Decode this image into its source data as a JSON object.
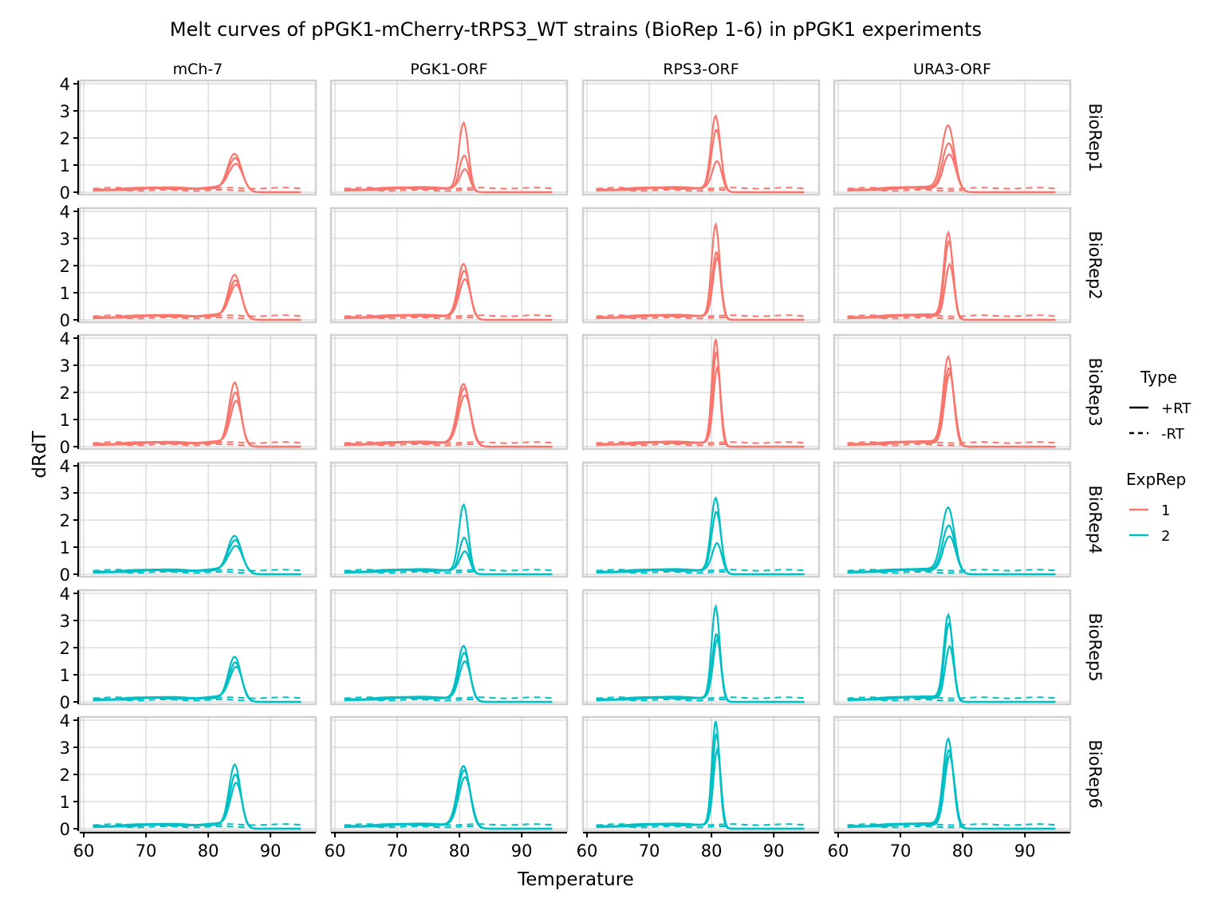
{
  "chart_data": {
    "type": "line",
    "title": "Melt curves of pPGK1-mCherry-tRPS3_WT strains (BioRep 1-6) in pPGK1 experiments",
    "xlabel": "Temperature",
    "ylabel": "dRdT",
    "xlim": [
      60,
      96
    ],
    "ylim": [
      0,
      4
    ],
    "x_ticks": [
      "60",
      "70",
      "80",
      "90"
    ],
    "y_ticks": [
      "0",
      "1",
      "2",
      "3",
      "4"
    ],
    "grid": true,
    "facet_columns": [
      "mCh-7",
      "PGK1-ORF",
      "RPS3-ORF",
      "URA3-ORF"
    ],
    "facet_rows": [
      "BioRep1",
      "BioRep2",
      "BioRep3",
      "BioRep4",
      "BioRep5",
      "BioRep6"
    ],
    "legend": {
      "placement": "right",
      "type_title": "Type",
      "type_entries": [
        {
          "label": "+RT",
          "dash": "solid"
        },
        {
          "label": "-RT",
          "dash": "dashed"
        }
      ],
      "exprep_title": "ExpRep",
      "exprep_entries": [
        {
          "label": "1",
          "color": "#F8766D"
        },
        {
          "label": "2",
          "color": "#00BFC4"
        }
      ]
    },
    "row_exprep": [
      "1",
      "1",
      "1",
      "2",
      "2",
      "2"
    ],
    "peaks_by_row_col": [
      [
        {
          "center": 84.4,
          "heights": [
            1.3,
            1.15,
            0.95
          ],
          "width": 1.1
        },
        {
          "center": 80.8,
          "heights": [
            2.45,
            1.25,
            0.75
          ],
          "width": 0.75
        },
        {
          "center": 80.8,
          "heights": [
            2.7,
            2.2,
            1.05
          ],
          "width": 0.75
        },
        {
          "center": 77.8,
          "heights": [
            2.35,
            1.7,
            1.3
          ],
          "width": 1.0
        }
      ],
      [
        {
          "center": 84.4,
          "heights": [
            1.55,
            1.35,
            1.2
          ],
          "width": 1.0
        },
        {
          "center": 80.8,
          "heights": [
            1.95,
            1.7,
            1.4
          ],
          "width": 0.9
        },
        {
          "center": 80.8,
          "heights": [
            3.4,
            2.4,
            2.2
          ],
          "width": 0.65
        },
        {
          "center": 77.8,
          "heights": [
            3.1,
            2.8,
            1.95
          ],
          "width": 0.7
        }
      ],
      [
        {
          "center": 84.4,
          "heights": [
            2.25,
            1.9,
            1.6
          ],
          "width": 0.9
        },
        {
          "center": 80.8,
          "heights": [
            2.2,
            2.05,
            1.8
          ],
          "width": 1.0
        },
        {
          "center": 80.8,
          "heights": [
            3.85,
            3.4,
            2.8
          ],
          "width": 0.6
        },
        {
          "center": 77.8,
          "heights": [
            3.2,
            2.8,
            2.6
          ],
          "width": 0.8
        }
      ],
      [
        {
          "center": 84.4,
          "heights": [
            1.3,
            1.15,
            0.95
          ],
          "width": 1.1
        },
        {
          "center": 80.8,
          "heights": [
            2.45,
            1.25,
            0.75
          ],
          "width": 0.75
        },
        {
          "center": 80.8,
          "heights": [
            2.7,
            2.2,
            1.05
          ],
          "width": 0.75
        },
        {
          "center": 77.8,
          "heights": [
            2.35,
            1.7,
            1.3
          ],
          "width": 1.0
        }
      ],
      [
        {
          "center": 84.4,
          "heights": [
            1.55,
            1.35,
            1.2
          ],
          "width": 1.0
        },
        {
          "center": 80.8,
          "heights": [
            1.95,
            1.7,
            1.4
          ],
          "width": 0.9
        },
        {
          "center": 80.8,
          "heights": [
            3.4,
            2.4,
            2.2
          ],
          "width": 0.65
        },
        {
          "center": 77.8,
          "heights": [
            3.1,
            2.8,
            1.95
          ],
          "width": 0.7
        }
      ],
      [
        {
          "center": 84.4,
          "heights": [
            2.25,
            1.9,
            1.6
          ],
          "width": 0.9
        },
        {
          "center": 80.8,
          "heights": [
            2.2,
            2.05,
            1.8
          ],
          "width": 1.0
        },
        {
          "center": 80.8,
          "heights": [
            3.85,
            3.4,
            2.8
          ],
          "width": 0.6
        },
        {
          "center": 77.8,
          "heights": [
            3.2,
            2.8,
            2.6
          ],
          "width": 0.8
        }
      ]
    ],
    "baseline_level": 0.18,
    "minus_rt_level": 0.15,
    "colors": {
      "exprep1": "#F8766D",
      "exprep2": "#00BFC4",
      "grid": "#cccccc",
      "panel_border": "#d0d0d0"
    }
  }
}
